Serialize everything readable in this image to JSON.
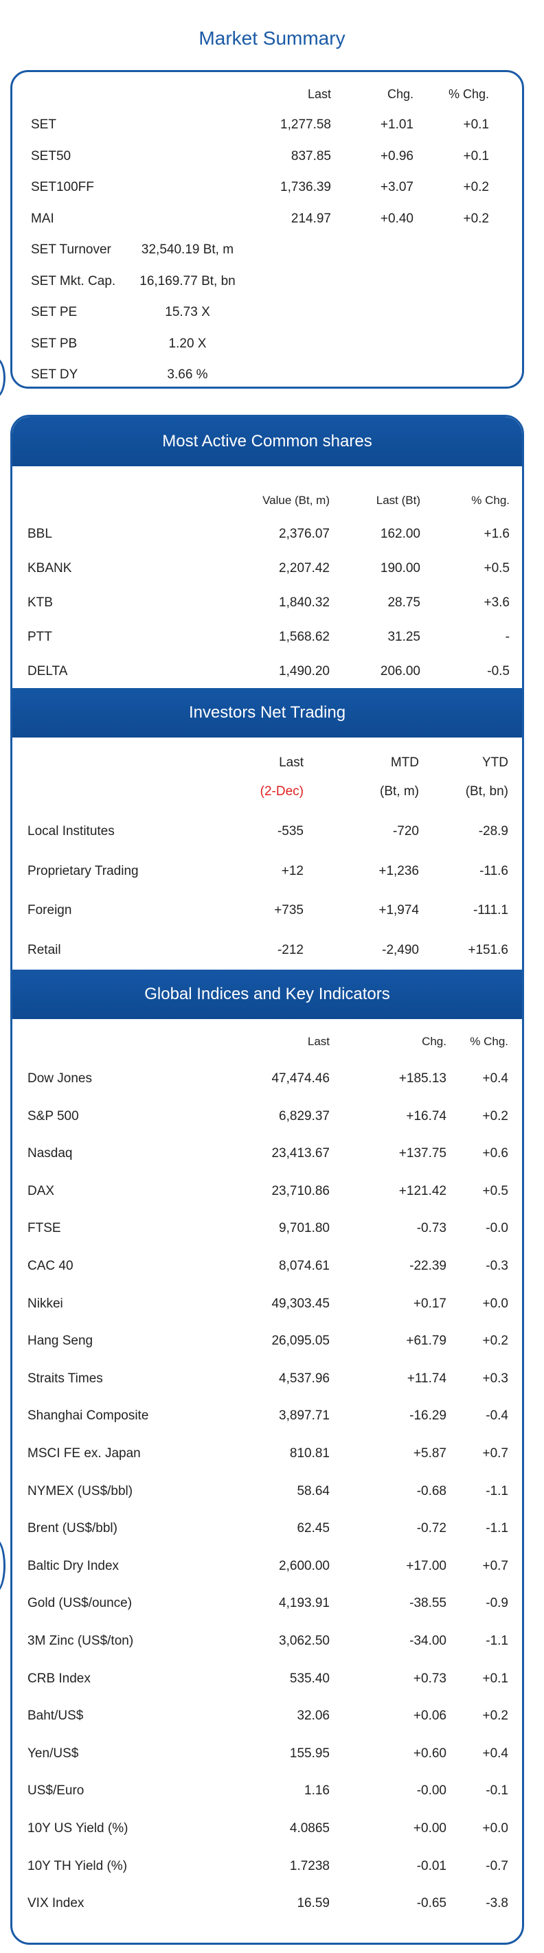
{
  "title": "Market Summary",
  "market_summary": {
    "headers": {
      "last": "Last",
      "chg": "Chg.",
      "pct": "% Chg."
    },
    "index_rows": [
      {
        "name": "SET",
        "last": "1,277.58",
        "chg": "+1.01",
        "pct": "+0.1"
      },
      {
        "name": "SET50",
        "last": "837.85",
        "chg": "+0.96",
        "pct": "+0.1"
      },
      {
        "name": "SET100FF",
        "last": "1,736.39",
        "chg": "+3.07",
        "pct": "+0.2"
      },
      {
        "name": "MAI",
        "last": "214.97",
        "chg": "+0.40",
        "pct": "+0.2"
      }
    ],
    "info_rows": [
      {
        "name": "SET  Turnover",
        "value": "32,540.19 Bt,  m"
      },
      {
        "name": "SET  Mkt. Cap.",
        "value": "16,169.77 Bt,  bn"
      },
      {
        "name": "SET  PE",
        "value": "15.73 X"
      },
      {
        "name": "SET  PB",
        "value": "1.20 X"
      },
      {
        "name": "SET  DY",
        "value": "3.66 %"
      }
    ]
  },
  "most_active": {
    "title": "Most Active Common shares",
    "headers": {
      "value": "Value (Bt, m)",
      "last": "Last (Bt)",
      "pct": "% Chg."
    },
    "rows": [
      {
        "name": "BBL",
        "value": "2,376.07",
        "last": "162.00",
        "pct": "+1.6"
      },
      {
        "name": "KBANK",
        "value": "2,207.42",
        "last": "190.00",
        "pct": "+0.5"
      },
      {
        "name": "KTB",
        "value": "1,840.32",
        "last": "28.75",
        "pct": "+3.6"
      },
      {
        "name": "PTT",
        "value": "1,568.62",
        "last": "31.25",
        "pct": "-"
      },
      {
        "name": "DELTA",
        "value": "1,490.20",
        "last": "206.00",
        "pct": "-0.5"
      }
    ]
  },
  "investors": {
    "title": "Investors Net Trading",
    "headers": {
      "last": "Last",
      "mtd": "MTD",
      "ytd": "YTD",
      "date": "(2-Dec)",
      "mtd_unit": "(Bt, m)",
      "ytd_unit": "(Bt, bn)"
    },
    "rows": [
      {
        "name": "Local Institutes",
        "last": "-535",
        "mtd": "-720",
        "ytd": "-28.9"
      },
      {
        "name": "Proprietary Trading",
        "last": "+12",
        "mtd": "+1,236",
        "ytd": "-11.6"
      },
      {
        "name": "Foreign",
        "last": "+735",
        "mtd": "+1,974",
        "ytd": "-111.1"
      },
      {
        "name": "Retail",
        "last": "-212",
        "mtd": "-2,490",
        "ytd": "+151.6"
      }
    ]
  },
  "global": {
    "title": "Global Indices and Key Indicators",
    "headers": {
      "last": "Last",
      "chg": "Chg.",
      "pct": "% Chg."
    },
    "rows": [
      {
        "name": "Dow Jones",
        "last": "47,474.46",
        "chg": "+185.13",
        "pct": "+0.4"
      },
      {
        "name": "S&P 500",
        "last": "6,829.37",
        "chg": "+16.74",
        "pct": "+0.2"
      },
      {
        "name": "Nasdaq",
        "last": "23,413.67",
        "chg": "+137.75",
        "pct": "+0.6"
      },
      {
        "name": "DAX",
        "last": "23,710.86",
        "chg": "+121.42",
        "pct": "+0.5"
      },
      {
        "name": "FTSE",
        "last": "9,701.80",
        "chg": "-0.73",
        "pct": "-0.0"
      },
      {
        "name": "CAC 40",
        "last": "8,074.61",
        "chg": "-22.39",
        "pct": "-0.3"
      },
      {
        "name": "Nikkei",
        "last": "49,303.45",
        "chg": "+0.17",
        "pct": "+0.0"
      },
      {
        "name": "Hang Seng",
        "last": "26,095.05",
        "chg": "+61.79",
        "pct": "+0.2"
      },
      {
        "name": "Straits Times",
        "last": "4,537.96",
        "chg": "+11.74",
        "pct": "+0.3"
      },
      {
        "name": "Shanghai Composite",
        "last": "3,897.71",
        "chg": "-16.29",
        "pct": "-0.4"
      },
      {
        "name": "MSCI FE ex. Japan",
        "last": "810.81",
        "chg": "+5.87",
        "pct": "+0.7"
      },
      {
        "name": "NYMEX (US$/bbl)",
        "last": "58.64",
        "chg": "-0.68",
        "pct": "-1.1"
      },
      {
        "name": "Brent (US$/bbl)",
        "last": "62.45",
        "chg": "-0.72",
        "pct": "-1.1"
      },
      {
        "name": "Baltic Dry Index",
        "last": "2,600.00",
        "chg": "+17.00",
        "pct": "+0.7"
      },
      {
        "name": "Gold (US$/ounce)",
        "last": "4,193.91",
        "chg": "-38.55",
        "pct": "-0.9"
      },
      {
        "name": "3M Zinc (US$/ton)",
        "last": "3,062.50",
        "chg": "-34.00",
        "pct": "-1.1"
      },
      {
        "name": "CRB Index",
        "last": "535.40",
        "chg": "+0.73",
        "pct": "+0.1"
      },
      {
        "name": "Baht/US$",
        "last": "32.06",
        "chg": "+0.06",
        "pct": "+0.2"
      },
      {
        "name": "Yen/US$",
        "last": "155.95",
        "chg": "+0.60",
        "pct": "+0.4"
      },
      {
        "name": "US$/Euro",
        "last": "1.16",
        "chg": "-0.00",
        "pct": "-0.1"
      },
      {
        "name": "10Y US Yield (%)",
        "last": "4.0865",
        "chg": "+0.00",
        "pct": "+0.0"
      },
      {
        "name": "10Y TH Yield (%)",
        "last": "1.7238",
        "chg": "-0.01",
        "pct": "-0.7"
      },
      {
        "name": "VIX Index",
        "last": "16.59",
        "chg": "-0.65",
        "pct": "-3.8"
      }
    ]
  },
  "colors": {
    "brand": "#1a5aa6",
    "band": "#1556a4",
    "negative_date": "#e02020"
  }
}
